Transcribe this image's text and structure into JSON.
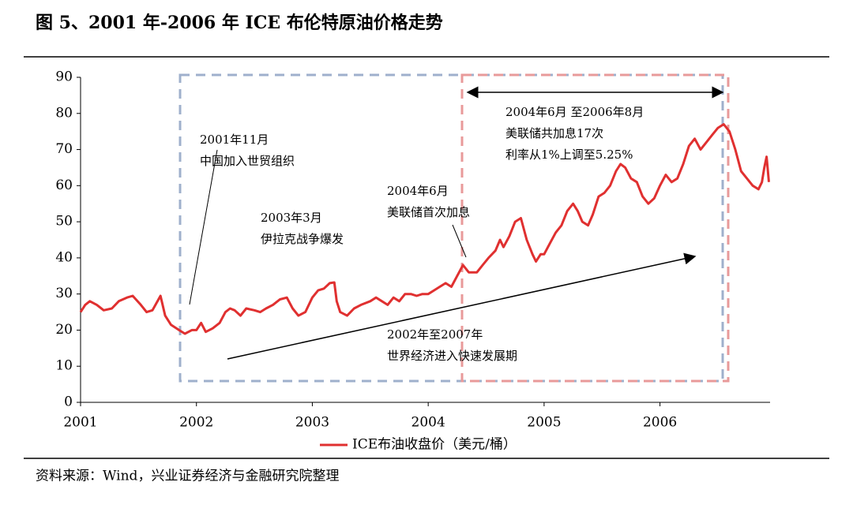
{
  "chart_data": {
    "type": "line",
    "title": "图 5、2001 年-2006 年 ICE 布伦特原油价格走势",
    "source": "资料来源：Wind，兴业证券经济与金融研究院整理",
    "xlim": [
      2001,
      2006.95
    ],
    "xticks": [
      2001,
      2002,
      2003,
      2004,
      2005,
      2006
    ],
    "ylim": [
      0,
      90
    ],
    "yticks": [
      0,
      10,
      20,
      30,
      40,
      50,
      60,
      70,
      80,
      90
    ],
    "legend": "bottom",
    "annotations": [
      {
        "lines": [
          "2001年11月",
          "中国加入世贸组织"
        ]
      },
      {
        "lines": [
          "2003年3月",
          "伊拉克战争爆发"
        ]
      },
      {
        "lines": [
          "2004年6月",
          "美联储首次加息"
        ]
      },
      {
        "lines": [
          "2004年6月 至2006年8月",
          "美联储共加息17次",
          "利率从1%上调至5.25%"
        ]
      },
      {
        "lines": [
          "2002年至2007年",
          "世界经济进入快速发展期"
        ]
      }
    ],
    "x": [
      2001.0,
      2001.04,
      2001.08,
      2001.14,
      2001.2,
      2001.27,
      2001.33,
      2001.4,
      2001.45,
      2001.52,
      2001.57,
      2001.62,
      2001.69,
      2001.73,
      2001.78,
      2001.85,
      2001.9,
      2001.96,
      2002.0,
      2002.04,
      2002.08,
      2002.14,
      2002.2,
      2002.25,
      2002.29,
      2002.33,
      2002.38,
      2002.43,
      2002.5,
      2002.55,
      2002.6,
      2002.66,
      2002.72,
      2002.78,
      2002.83,
      2002.88,
      2002.94,
      2003.0,
      2003.05,
      2003.1,
      2003.15,
      2003.19,
      2003.21,
      2003.24,
      2003.3,
      2003.36,
      2003.42,
      2003.5,
      2003.55,
      2003.6,
      2003.65,
      2003.7,
      2003.75,
      2003.8,
      2003.85,
      2003.9,
      2003.95,
      2004.0,
      2004.05,
      2004.1,
      2004.15,
      2004.2,
      2004.25,
      2004.3,
      2004.35,
      2004.42,
      2004.47,
      2004.52,
      2004.58,
      2004.62,
      2004.65,
      2004.7,
      2004.75,
      2004.8,
      2004.85,
      2004.9,
      2004.93,
      2004.97,
      2005.0,
      2005.05,
      2005.1,
      2005.15,
      2005.2,
      2005.25,
      2005.29,
      2005.33,
      2005.38,
      2005.42,
      2005.47,
      2005.52,
      2005.57,
      2005.62,
      2005.66,
      2005.7,
      2005.75,
      2005.8,
      2005.85,
      2005.9,
      2005.95,
      2006.0,
      2006.05,
      2006.1,
      2006.15,
      2006.2,
      2006.25,
      2006.3,
      2006.35,
      2006.4,
      2006.45,
      2006.5,
      2006.55,
      2006.6,
      2006.65,
      2006.7,
      2006.75,
      2006.8,
      2006.85,
      2006.88,
      2006.9,
      2006.92,
      2006.94
    ],
    "series": [
      {
        "name": "ICE布油收盘价（美元/桶）",
        "color": "#e03030",
        "values": [
          25,
          27,
          28,
          27,
          25.5,
          26,
          28,
          29,
          29.5,
          27,
          25,
          25.5,
          29.5,
          24,
          21.5,
          20,
          19,
          20,
          20,
          22,
          19.5,
          20.5,
          22,
          25,
          26,
          25.5,
          24,
          26,
          25.5,
          25,
          26,
          27,
          28.5,
          29,
          26,
          24,
          25,
          29,
          31,
          31.5,
          33,
          33.2,
          28,
          25,
          24,
          26,
          27,
          28,
          29,
          28,
          27,
          29,
          28,
          30,
          30,
          29.5,
          30,
          30,
          31,
          32,
          33,
          32,
          35,
          38,
          36,
          36,
          38,
          40,
          42,
          45,
          43,
          46,
          50,
          51,
          45,
          41,
          39,
          41,
          41,
          44,
          47,
          49,
          53,
          55,
          53,
          50,
          49,
          52,
          57,
          58,
          60,
          64,
          66,
          65,
          62,
          61,
          57,
          55,
          56.5,
          60,
          63,
          61,
          62,
          66,
          71,
          73,
          70,
          72,
          74,
          76,
          77,
          75,
          70,
          64,
          62,
          60,
          59,
          61,
          65,
          68,
          61
        ]
      }
    ]
  }
}
